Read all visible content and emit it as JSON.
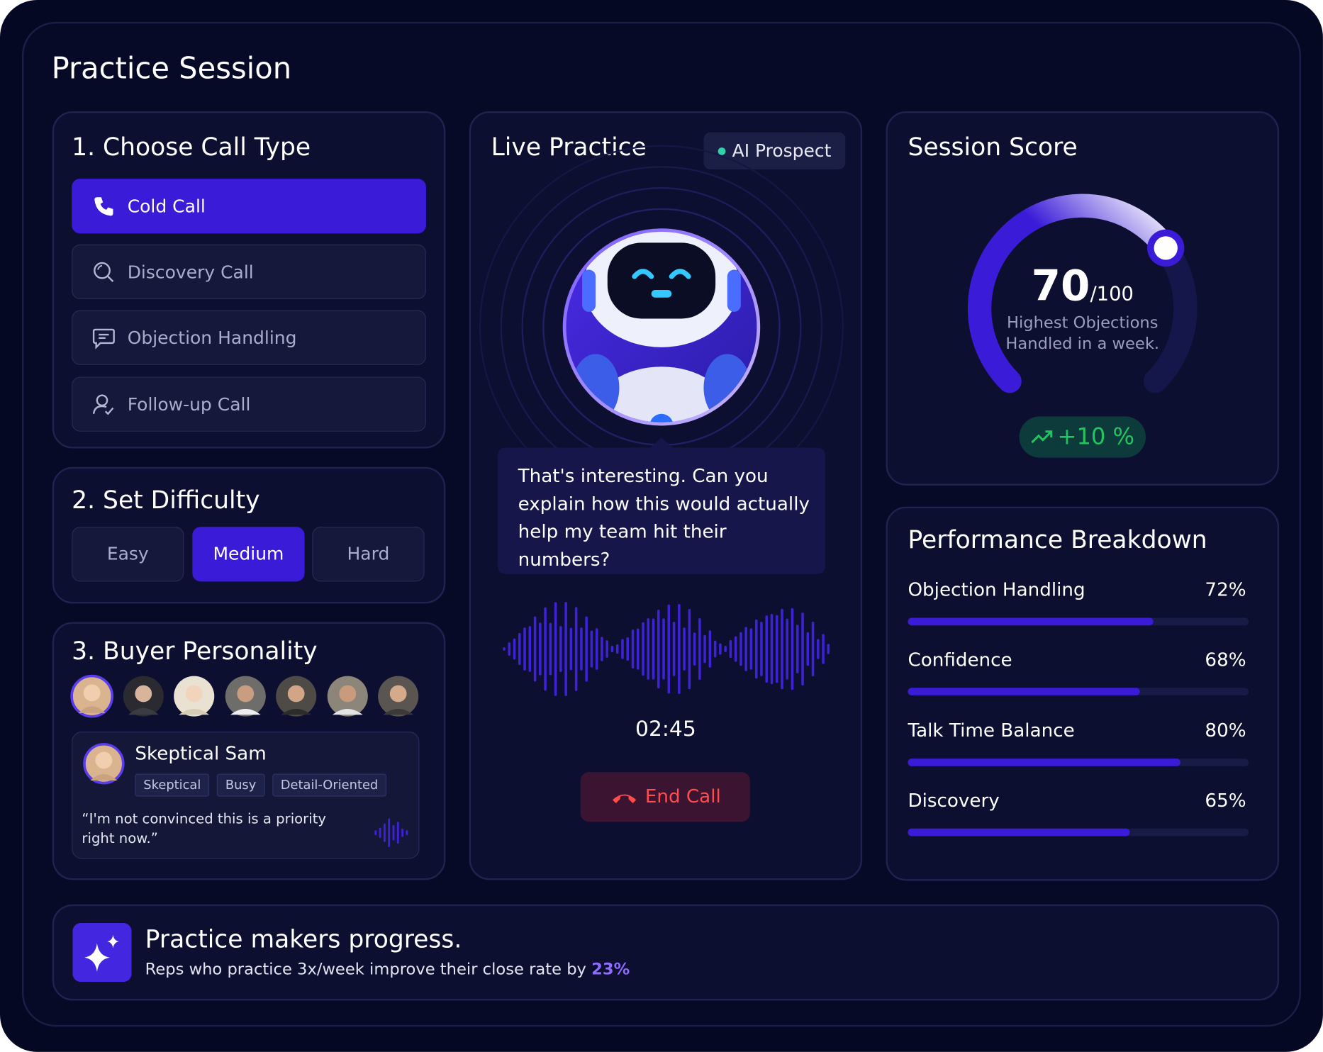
{
  "header": {
    "title": "Practice Session"
  },
  "call_type": {
    "title": "1. Choose Call Type",
    "options": [
      "Cold Call",
      "Discovery Call",
      "Objection Handling",
      "Follow-up Call"
    ],
    "selected": 0
  },
  "difficulty": {
    "title": "2. Set Difficulty",
    "options": [
      "Easy",
      "Medium",
      "Hard"
    ],
    "selected": 1
  },
  "personality": {
    "title": "3. Buyer Personality",
    "persona": {
      "name": "Skeptical Sam",
      "tags": [
        "Skeptical",
        "Busy",
        "Detail-Oriented"
      ],
      "quote": "“I'm not convinced this is a priority right now.”"
    }
  },
  "live": {
    "title": "Live Practice",
    "badge": "AI Prospect",
    "message": "That's interesting. Can you explain how this would actually help my team hit their numbers?",
    "timer": "02:45",
    "end_button": "End Call"
  },
  "score": {
    "title": "Session Score",
    "value": 70,
    "max": 100,
    "max_label": "/100",
    "caption": "Highest Objections Handled in a week.",
    "change": "+10 %"
  },
  "performance": {
    "title": "Performance Breakdown",
    "items": [
      {
        "label": "Objection Handling",
        "value": 72,
        "value_label": "72%"
      },
      {
        "label": "Confidence",
        "value": 68,
        "value_label": "68%"
      },
      {
        "label": "Talk Time Balance",
        "value": 80,
        "value_label": "80%"
      },
      {
        "label": "Discovery",
        "value": 65,
        "value_label": "65%"
      }
    ]
  },
  "banner": {
    "title": "Practice makers progress.",
    "text": "Reps who practice 3x/week improve their close rate by",
    "highlight": "23%"
  }
}
